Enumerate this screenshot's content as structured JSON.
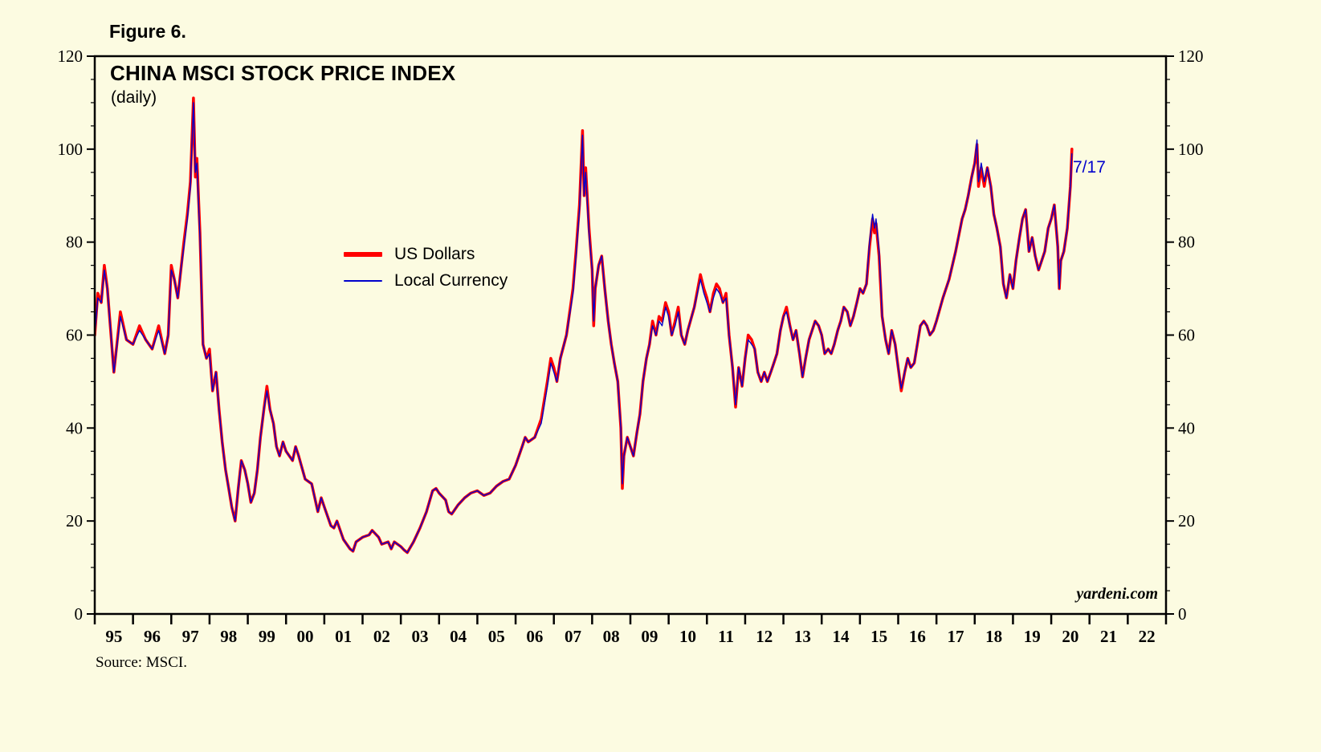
{
  "figure": {
    "label": "Figure 6."
  },
  "chart": {
    "title": "CHINA MSCI STOCK PRICE INDEX",
    "subtitle": "(daily)",
    "watermark": "yardeni.com",
    "source": "Source: MSCI.",
    "annotation": {
      "text": "7/17",
      "color": "#0000CC"
    },
    "background": "#FCFBE1",
    "axis_color": "#000000"
  },
  "chart_data": {
    "type": "line",
    "title": "CHINA MSCI STOCK PRICE INDEX (daily)",
    "xlabel": "",
    "ylabel": "",
    "xlim": [
      1995,
      2023
    ],
    "ylim": [
      0,
      120
    ],
    "grid": false,
    "legend_position": "inside-center-left",
    "y_ticks": [
      0,
      20,
      40,
      60,
      80,
      100,
      120
    ],
    "y_minor_step": 5,
    "x_year_labels": [
      "95",
      "96",
      "97",
      "98",
      "99",
      "00",
      "01",
      "02",
      "03",
      "04",
      "05",
      "06",
      "07",
      "08",
      "09",
      "10",
      "11",
      "12",
      "13",
      "14",
      "15",
      "16",
      "17",
      "18",
      "19",
      "20",
      "21",
      "22"
    ],
    "x": [
      1995.0,
      1995.08,
      1995.17,
      1995.25,
      1995.33,
      1995.5,
      1995.67,
      1995.83,
      1996.0,
      1996.17,
      1996.33,
      1996.5,
      1996.67,
      1996.83,
      1996.92,
      1997.0,
      1997.08,
      1997.17,
      1997.25,
      1997.33,
      1997.42,
      1997.5,
      1997.58,
      1997.63,
      1997.67,
      1997.75,
      1997.83,
      1997.92,
      1998.0,
      1998.08,
      1998.17,
      1998.25,
      1998.33,
      1998.42,
      1998.5,
      1998.58,
      1998.67,
      1998.75,
      1998.83,
      1998.92,
      1999.0,
      1999.08,
      1999.17,
      1999.25,
      1999.33,
      1999.42,
      1999.5,
      1999.58,
      1999.67,
      1999.75,
      1999.83,
      1999.92,
      2000.0,
      2000.17,
      2000.25,
      2000.33,
      2000.5,
      2000.67,
      2000.83,
      2000.92,
      2001.0,
      2001.17,
      2001.25,
      2001.33,
      2001.5,
      2001.67,
      2001.75,
      2001.83,
      2002.0,
      2002.17,
      2002.25,
      2002.42,
      2002.5,
      2002.67,
      2002.75,
      2002.83,
      2003.0,
      2003.08,
      2003.17,
      2003.33,
      2003.5,
      2003.67,
      2003.83,
      2003.92,
      2004.0,
      2004.17,
      2004.25,
      2004.33,
      2004.5,
      2004.67,
      2004.83,
      2005.0,
      2005.17,
      2005.33,
      2005.5,
      2005.67,
      2005.83,
      2006.0,
      2006.17,
      2006.25,
      2006.33,
      2006.5,
      2006.67,
      2006.83,
      2006.92,
      2007.0,
      2007.08,
      2007.17,
      2007.33,
      2007.5,
      2007.58,
      2007.67,
      2007.75,
      2007.79,
      2007.83,
      2007.92,
      2008.0,
      2008.04,
      2008.08,
      2008.17,
      2008.25,
      2008.33,
      2008.42,
      2008.5,
      2008.58,
      2008.67,
      2008.75,
      2008.79,
      2008.83,
      2008.92,
      2009.0,
      2009.08,
      2009.17,
      2009.25,
      2009.33,
      2009.42,
      2009.5,
      2009.58,
      2009.67,
      2009.75,
      2009.83,
      2009.92,
      2010.0,
      2010.08,
      2010.17,
      2010.25,
      2010.33,
      2010.42,
      2010.5,
      2010.67,
      2010.83,
      2010.92,
      2011.0,
      2011.08,
      2011.17,
      2011.25,
      2011.33,
      2011.42,
      2011.5,
      2011.58,
      2011.67,
      2011.75,
      2011.83,
      2011.92,
      2012.0,
      2012.08,
      2012.17,
      2012.25,
      2012.33,
      2012.42,
      2012.5,
      2012.58,
      2012.67,
      2012.75,
      2012.83,
      2012.92,
      2013.0,
      2013.08,
      2013.17,
      2013.25,
      2013.33,
      2013.42,
      2013.5,
      2013.58,
      2013.67,
      2013.75,
      2013.83,
      2013.92,
      2014.0,
      2014.08,
      2014.17,
      2014.25,
      2014.33,
      2014.42,
      2014.5,
      2014.58,
      2014.67,
      2014.75,
      2014.83,
      2014.92,
      2015.0,
      2015.08,
      2015.17,
      2015.25,
      2015.33,
      2015.38,
      2015.42,
      2015.5,
      2015.58,
      2015.67,
      2015.75,
      2015.83,
      2015.92,
      2016.0,
      2016.08,
      2016.17,
      2016.25,
      2016.33,
      2016.42,
      2016.5,
      2016.58,
      2016.67,
      2016.75,
      2016.83,
      2016.92,
      2017.0,
      2017.17,
      2017.33,
      2017.5,
      2017.67,
      2017.75,
      2017.83,
      2017.92,
      2018.0,
      2018.06,
      2018.1,
      2018.17,
      2018.25,
      2018.33,
      2018.42,
      2018.5,
      2018.58,
      2018.67,
      2018.75,
      2018.83,
      2018.92,
      2019.0,
      2019.08,
      2019.17,
      2019.25,
      2019.33,
      2019.42,
      2019.5,
      2019.58,
      2019.67,
      2019.75,
      2019.83,
      2019.92,
      2020.0,
      2020.08,
      2020.17,
      2020.21,
      2020.25,
      2020.33,
      2020.42,
      2020.5,
      2020.54
    ],
    "series": [
      {
        "name": "US Dollars",
        "color": "#FF0000",
        "stroke_width": 3.5,
        "values": [
          60,
          69,
          67,
          75,
          70,
          52,
          65,
          59,
          58,
          62,
          59,
          57,
          62,
          56,
          60,
          75,
          72,
          68,
          74,
          80,
          86,
          93,
          111,
          94,
          98,
          82,
          58,
          55,
          57,
          48,
          52,
          44,
          37,
          31,
          27,
          23,
          20,
          27,
          33,
          31,
          28,
          24,
          26,
          31,
          38,
          44,
          49,
          44,
          41,
          36,
          34,
          37,
          35,
          33,
          36,
          34,
          29,
          28,
          22,
          25,
          23,
          19,
          18.5,
          20,
          16,
          14,
          13.5,
          15.5,
          16.5,
          17,
          18,
          16.5,
          15,
          15.5,
          14,
          15.5,
          14.5,
          13.8,
          13.2,
          15.5,
          18.5,
          22,
          26.5,
          27,
          26,
          24.5,
          22,
          21.5,
          23.5,
          25,
          26,
          26.5,
          25.5,
          26,
          27.5,
          28.5,
          29,
          32,
          36,
          38,
          37,
          38,
          42,
          50,
          55,
          53,
          50,
          55,
          60,
          70,
          78,
          88,
          104,
          90,
          96,
          83,
          74,
          62,
          70,
          75,
          77,
          70,
          63,
          58,
          54,
          50,
          40,
          27,
          34,
          38,
          36,
          34,
          39,
          43,
          50,
          55,
          58,
          63,
          60,
          64,
          63,
          67,
          65,
          60,
          63,
          66,
          60,
          58,
          61,
          66,
          73,
          70,
          68,
          65,
          69,
          71,
          70,
          67,
          69,
          60,
          53,
          44.5,
          53,
          49,
          55,
          60,
          59,
          57,
          52,
          50,
          52,
          50,
          52,
          54,
          56,
          61,
          64,
          66,
          62,
          59,
          61,
          56,
          51,
          55,
          59,
          61,
          63,
          62,
          60,
          56,
          57,
          56,
          58,
          61,
          63,
          66,
          65,
          62,
          64,
          67,
          70,
          69,
          71,
          79,
          85,
          82,
          84,
          77,
          64,
          59,
          56,
          61,
          58,
          53,
          48,
          52,
          55,
          53,
          54,
          58,
          62,
          63,
          62,
          60,
          61,
          63,
          68,
          72,
          78,
          85,
          87,
          90,
          94,
          97,
          101,
          92,
          96,
          92,
          96,
          92,
          86,
          83,
          79,
          71,
          68,
          73,
          70,
          76,
          81,
          85,
          87,
          78,
          81,
          77,
          74,
          76,
          78,
          83,
          85,
          88,
          79,
          70,
          76,
          78,
          83,
          92,
          100
        ]
      },
      {
        "name": "Local Currency",
        "color": "#0000CC",
        "stroke_width": 1.4,
        "values": [
          60,
          68,
          67,
          74,
          70,
          52,
          64,
          59,
          58,
          61,
          59,
          57,
          61,
          56,
          60,
          74,
          72,
          68,
          74,
          79,
          85,
          92,
          110,
          95,
          97,
          81,
          58,
          55,
          56,
          48,
          52,
          44,
          37,
          31,
          27,
          23,
          20,
          27,
          33,
          31,
          28,
          24,
          26,
          31,
          38,
          44,
          48,
          44,
          41,
          36,
          34,
          37,
          35,
          33,
          36,
          34,
          29,
          28,
          22,
          25,
          23,
          19,
          18.5,
          20,
          16,
          14,
          13.5,
          15.5,
          16.5,
          17,
          18,
          16.5,
          15,
          15.5,
          14,
          15.5,
          14.5,
          13.8,
          13.2,
          15.5,
          18.5,
          22,
          26.5,
          27,
          26,
          24.5,
          22,
          21.5,
          23.5,
          25,
          26,
          26.5,
          25.5,
          26,
          27.5,
          28.5,
          29,
          32,
          36,
          38,
          37,
          38,
          41,
          49,
          54,
          52,
          50,
          55,
          60,
          69,
          77,
          87,
          103,
          90,
          95,
          82,
          74,
          63,
          70,
          75,
          77,
          70,
          63,
          58,
          54,
          50,
          40,
          28,
          34,
          38,
          36,
          34,
          39,
          43,
          50,
          55,
          58,
          62,
          60,
          63,
          62,
          66,
          64,
          60,
          62,
          65,
          60,
          58,
          61,
          66,
          72,
          69,
          67,
          65,
          68,
          70,
          69,
          67,
          68,
          60,
          53,
          45,
          53,
          49,
          55,
          59,
          58,
          57,
          52,
          50,
          52,
          50,
          52,
          54,
          56,
          61,
          64,
          65,
          62,
          59,
          61,
          56,
          51,
          55,
          59,
          61,
          63,
          62,
          60,
          56,
          57,
          56,
          58,
          61,
          63,
          66,
          65,
          62,
          64,
          67,
          70,
          69,
          71,
          80,
          86,
          83,
          85,
          78,
          64,
          59,
          56,
          61,
          58,
          53,
          48.5,
          52,
          55,
          53,
          54,
          58,
          62,
          63,
          62,
          60,
          61,
          63,
          68,
          72,
          78,
          85,
          87,
          90,
          94,
          97,
          102,
          93,
          97,
          93,
          96,
          92,
          86,
          83,
          79,
          71,
          68,
          73,
          70,
          76,
          81,
          85,
          87,
          78,
          81,
          77,
          74,
          76,
          78,
          83,
          85,
          88,
          79,
          70,
          76,
          78,
          83,
          92,
          99
        ]
      }
    ]
  }
}
